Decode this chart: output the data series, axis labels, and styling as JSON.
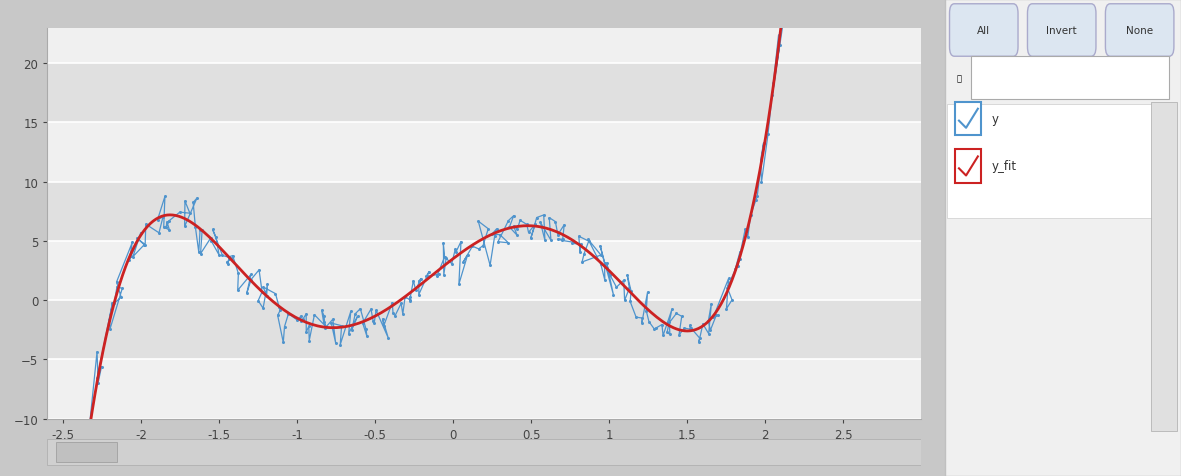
{
  "xlim": [
    -2.6,
    3.0
  ],
  "ylim": [
    -10,
    23
  ],
  "yticks": [
    -10,
    -5,
    0,
    5,
    10,
    15,
    20
  ],
  "xticks": [
    -2.5,
    -2.0,
    -1.5,
    -1.0,
    -0.5,
    0.0,
    0.5,
    1.0,
    1.5,
    2.0,
    2.5
  ],
  "bg_outer": "#d4d0c8",
  "bg_plot": "#f0f0f0",
  "band_light": "#f0f0f0",
  "band_dark": "#e0e0e0",
  "grid_color": "#ffffff",
  "noisy_color": "#4f94cd",
  "fit_color": "#cc2222",
  "noisy_label": "y",
  "fit_label": "y_fit",
  "noise_seed": 7,
  "n_points": 300,
  "x_start": -2.58,
  "x_end": 2.75,
  "noise_x_scale": 0.025,
  "noise_y_scale": 0.9
}
